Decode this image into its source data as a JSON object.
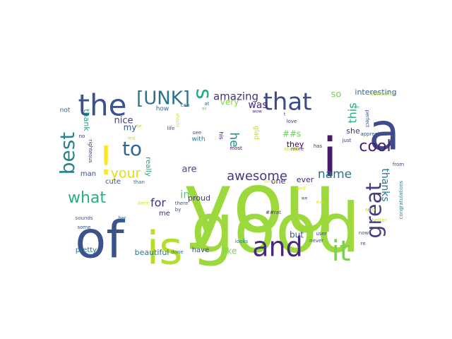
{
  "chart_data": {
    "type": "wordcloud",
    "title": "",
    "background": "#ffffff",
    "palette": "viridis",
    "words": [
      {
        "text": "you",
        "weight": 100,
        "color": "#9bd93c"
      },
      {
        "text": "good",
        "weight": 88,
        "color": "#9bd93c"
      },
      {
        "text": "of",
        "weight": 62,
        "color": "#3b528b"
      },
      {
        "text": "is",
        "weight": 60,
        "color": "#b5de2b"
      },
      {
        "text": "a",
        "weight": 58,
        "color": "#3e4a89"
      },
      {
        "text": "i",
        "weight": 56,
        "color": "#481a6c"
      },
      {
        "text": "the",
        "weight": 40,
        "color": "#3b528b"
      },
      {
        "text": "!",
        "weight": 40,
        "color": "#fde725"
      },
      {
        "text": "it",
        "weight": 38,
        "color": "#7ad151"
      },
      {
        "text": "and",
        "weight": 36,
        "color": "#482878"
      },
      {
        "text": "that",
        "weight": 34,
        "color": "#3e4a89"
      },
      {
        "text": "great",
        "weight": 32,
        "color": "#433e85"
      },
      {
        "text": "best",
        "weight": 26,
        "color": "#26828e"
      },
      {
        "text": "s",
        "weight": 26,
        "color": "#22a884"
      },
      {
        "text": "[UNK]",
        "weight": 24,
        "color": "#2c728e"
      },
      {
        "text": "to",
        "weight": 24,
        "color": "#31688e"
      },
      {
        "text": "what",
        "weight": 21,
        "color": "#29af7f"
      },
      {
        "text": "cool",
        "weight": 19,
        "color": "#481f70"
      },
      {
        "text": "your",
        "weight": 17,
        "color": "#dde318"
      },
      {
        "text": "awesome",
        "weight": 16,
        "color": "#443983"
      },
      {
        "text": "name",
        "weight": 15,
        "color": "#2e6f8e"
      },
      {
        "text": "amazing",
        "weight": 14,
        "color": "#46327e"
      },
      {
        "text": "he",
        "weight": 14,
        "color": "#21918c"
      },
      {
        "text": "this",
        "weight": 14,
        "color": "#27ad81"
      },
      {
        "text": "thanks",
        "weight": 13,
        "color": "#2a788e"
      },
      {
        "text": "in",
        "weight": 13,
        "color": "#5ec962"
      },
      {
        "text": "for",
        "weight": 13,
        "color": "#472d7b"
      },
      {
        "text": "was",
        "weight": 12,
        "color": "#472c7a"
      },
      {
        "text": "nice",
        "weight": 12,
        "color": "#424086"
      },
      {
        "text": "are",
        "weight": 12,
        "color": "#3f4788"
      },
      {
        "text": "so",
        "weight": 11,
        "color": "#73d056"
      },
      {
        "text": "very",
        "weight": 11,
        "color": "#86d549"
      },
      {
        "text": "but",
        "weight": 10,
        "color": "#3b528b"
      },
      {
        "text": "like",
        "weight": 10,
        "color": "#7fd34e"
      },
      {
        "text": "interesting",
        "weight": 10,
        "color": "#355f8d"
      },
      {
        "text": "my",
        "weight": 10,
        "color": "#3c508b"
      },
      {
        "text": "beautiful",
        "weight": 10,
        "color": "#2a788e"
      },
      {
        "text": "proud",
        "weight": 9,
        "color": "#463480"
      },
      {
        "text": "one",
        "weight": 9,
        "color": "#481c6e"
      },
      {
        "text": "##s",
        "weight": 9,
        "color": "#6ccd5a"
      },
      {
        "text": "thank",
        "weight": 8,
        "color": "#1f9e89"
      },
      {
        "text": "she",
        "weight": 8,
        "color": "#46307e"
      },
      {
        "text": "they",
        "weight": 8,
        "color": "#440154"
      },
      {
        "text": "ever",
        "weight": 8,
        "color": "#482475"
      },
      {
        "text": "cute",
        "weight": 8,
        "color": "#3b528b"
      },
      {
        "text": "pretty",
        "weight": 8,
        "color": "#2d708e"
      },
      {
        "text": "have",
        "weight": 8,
        "color": "#414487"
      },
      {
        "text": "man",
        "weight": 8,
        "color": "#3e4c8a"
      },
      {
        "text": "me",
        "weight": 8,
        "color": "#482677"
      },
      {
        "text": "really",
        "weight": 7,
        "color": "#1fa188"
      },
      {
        "text": "how",
        "weight": 7,
        "color": "#30698e"
      },
      {
        "text": "with",
        "weight": 7,
        "color": "#2a788e"
      },
      {
        "text": "not",
        "weight": 7,
        "color": "#32648e"
      },
      {
        "text": "glad",
        "weight": 7,
        "color": "#b8de29"
      },
      {
        "text": "his",
        "weight": 6,
        "color": "#482173"
      },
      {
        "text": "wonderful",
        "weight": 6,
        "color": "#a0da39"
      },
      {
        "text": "appreciate",
        "weight": 6,
        "color": "#38598c"
      },
      {
        "text": "congratulations",
        "weight": 6,
        "color": "#27808e"
      },
      {
        "text": "perfect",
        "weight": 5,
        "color": "#3b528b"
      },
      {
        "text": "just",
        "weight": 5,
        "color": "#424186"
      },
      {
        "text": "has",
        "weight": 5,
        "color": "#46337f"
      },
      {
        "text": "love",
        "weight": 5,
        "color": "#453882"
      },
      {
        "text": "life",
        "weight": 5,
        "color": "#3b528b"
      },
      {
        "text": "see",
        "weight": 5,
        "color": "#3e4989"
      },
      {
        "text": "most",
        "weight": 5,
        "color": "#46075a"
      },
      {
        "text": "there",
        "weight": 5,
        "color": "#39568c"
      },
      {
        "text": "at",
        "weight": 5,
        "color": "#31688e"
      },
      {
        "text": "can",
        "weight": 5,
        "color": "#32658e"
      },
      {
        "text": "by",
        "weight": 5,
        "color": "#3b528b"
      },
      {
        "text": "than",
        "weight": 5,
        "color": "#2d708e"
      },
      {
        "text": "more",
        "weight": 5,
        "color": "#482878"
      },
      {
        "text": "user",
        "weight": 5,
        "color": "#3e4a89"
      },
      {
        "text": "never",
        "weight": 5,
        "color": "#3a548c"
      },
      {
        "text": "done",
        "weight": 5,
        "color": "#2c728e"
      },
      {
        "text": "looks",
        "weight": 5,
        "color": "#2a788e"
      },
      {
        "text": "sounds",
        "weight": 5,
        "color": "#3b528b"
      },
      {
        "text": "righteous",
        "weight": 5,
        "color": "#472d7b"
      },
      {
        "text": "no",
        "weight": 5,
        "color": "#482878"
      },
      {
        "text": "her",
        "weight": 5,
        "color": "#2c728e"
      },
      {
        "text": "##rat",
        "weight": 5,
        "color": "#46327e"
      },
      {
        "text": "from",
        "weight": 5,
        "color": "#3e4a89"
      },
      {
        "text": "some",
        "weight": 5,
        "color": "#3b528b"
      },
      {
        "text": "better",
        "weight": 5,
        "color": "#d0e11c"
      },
      {
        "text": "now",
        "weight": 5,
        "color": "#3b528b"
      },
      {
        "text": "re",
        "weight": 5,
        "color": "#3e4a89"
      },
      {
        "text": "who",
        "weight": 5,
        "color": "#c2df23"
      },
      {
        "text": "about",
        "weight": 5,
        "color": "#c8e020"
      },
      {
        "text": "well",
        "weight": 5,
        "color": "#d8e219"
      },
      {
        "text": "same",
        "weight": 4,
        "color": "#e5e419"
      },
      {
        "text": "on",
        "weight": 4,
        "color": "#1fa088"
      },
      {
        "text": "as",
        "weight": 4,
        "color": "#5ec962"
      },
      {
        "text": "wow",
        "weight": 4,
        "color": "#482677"
      },
      {
        "text": "t",
        "weight": 4,
        "color": "#482575"
      },
      {
        "text": "be",
        "weight": 4,
        "color": "#a5db36"
      },
      {
        "text": "real",
        "weight": 4,
        "color": "#b0dd2f"
      },
      {
        "text": "damn",
        "weight": 4,
        "color": "#d5e21a"
      },
      {
        "text": "should",
        "weight": 4,
        "color": "#c5e021"
      },
      {
        "text": "we",
        "weight": 4,
        "color": "#3f4788"
      },
      {
        "text": "##i",
        "weight": 4,
        "color": "#ece51b"
      }
    ]
  }
}
